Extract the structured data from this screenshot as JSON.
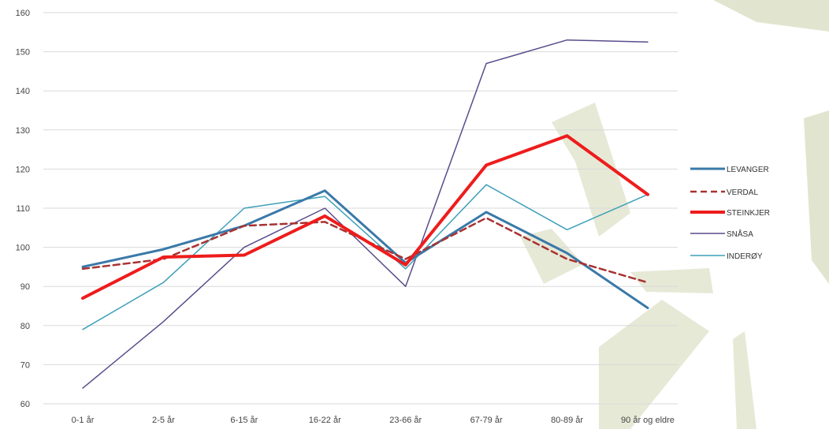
{
  "chart_data": {
    "type": "line",
    "title": "",
    "xlabel": "",
    "ylabel": "",
    "categories": [
      "0-1 år",
      "2-5 år",
      "6-15 år",
      "16-22 år",
      "23-66 år",
      "67-79 år",
      "80-89 år",
      "90 år og eldre"
    ],
    "ylim": [
      60,
      160
    ],
    "yticks": [
      60,
      70,
      80,
      90,
      100,
      110,
      120,
      130,
      140,
      150,
      160
    ],
    "grid": true,
    "legend": "right",
    "series": [
      {
        "name": "LEVANGER",
        "color": "#3a79a8",
        "dash": "solid",
        "width": 3,
        "values": [
          95,
          99.5,
          105.5,
          114.5,
          96,
          109,
          98.5,
          84.5
        ]
      },
      {
        "name": "VERDAL",
        "color": "#a83232",
        "dash": "dashed",
        "width": 2.5,
        "values": [
          94.5,
          97,
          105.5,
          106.5,
          97,
          107.5,
          97,
          91
        ]
      },
      {
        "name": "STEINKJER",
        "color": "#ee1c1c",
        "dash": "solid",
        "width": 4,
        "values": [
          87,
          97.5,
          98,
          108,
          95.5,
          121,
          128.5,
          113.5
        ]
      },
      {
        "name": "SNÅSA",
        "color": "#5a4c8c",
        "dash": "solid",
        "width": 1.5,
        "values": [
          64,
          81,
          100,
          110,
          90,
          147,
          153,
          152.5
        ]
      },
      {
        "name": "INDERØY",
        "color": "#3ea0b8",
        "dash": "solid",
        "width": 1.5,
        "values": [
          79,
          91,
          110,
          113,
          94.5,
          116,
          104.5,
          113.5
        ]
      }
    ]
  }
}
